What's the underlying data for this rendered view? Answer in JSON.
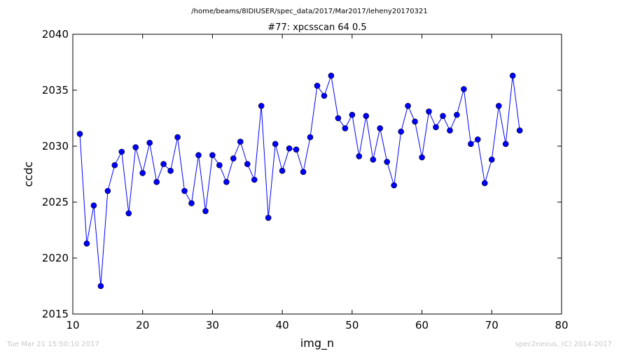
{
  "suptitle": "/home/beams/8IDIUSER/spec_data/2017/Mar2017/leheny20170321",
  "footer": {
    "timestamp": "Tue Mar 21 15:50:10 2017",
    "credit": "spec2nexus, (C) 2014-2017"
  },
  "chart_data": {
    "type": "line",
    "title": "#77: xpcsscan 64 0.5",
    "xlabel": "img_n",
    "ylabel": "ccdc",
    "xlim": [
      10,
      80
    ],
    "ylim": [
      2015,
      2040
    ],
    "xticks": [
      10,
      20,
      30,
      40,
      50,
      60,
      70,
      80
    ],
    "yticks": [
      2015,
      2020,
      2025,
      2030,
      2035,
      2040
    ],
    "grid": false,
    "line_color": "#0000ff",
    "marker": "circle",
    "x": [
      11,
      12,
      13,
      14,
      15,
      16,
      17,
      18,
      19,
      20,
      21,
      22,
      23,
      24,
      25,
      26,
      27,
      28,
      29,
      30,
      31,
      32,
      33,
      34,
      35,
      36,
      37,
      38,
      39,
      40,
      41,
      42,
      43,
      44,
      45,
      46,
      47,
      48,
      49,
      50,
      51,
      52,
      53,
      54,
      55,
      56,
      57,
      58,
      59,
      60,
      61,
      62,
      63,
      64,
      65,
      66,
      67,
      68,
      69,
      70,
      71,
      72,
      73,
      74
    ],
    "y": [
      2031.1,
      2021.3,
      2024.7,
      2017.5,
      2026.0,
      2028.3,
      2029.5,
      2024.0,
      2029.9,
      2027.6,
      2030.3,
      2026.8,
      2028.4,
      2027.8,
      2030.8,
      2026.0,
      2024.9,
      2029.2,
      2024.2,
      2029.2,
      2028.3,
      2026.8,
      2028.9,
      2030.4,
      2028.4,
      2027.0,
      2033.6,
      2023.6,
      2030.2,
      2027.8,
      2029.8,
      2029.7,
      2027.7,
      2030.8,
      2035.4,
      2034.5,
      2036.3,
      2032.5,
      2031.6,
      2032.8,
      2029.1,
      2032.7,
      2028.8,
      2031.6,
      2028.6,
      2026.5,
      2031.3,
      2033.6,
      2032.2,
      2029.0,
      2033.1,
      2031.7,
      2032.7,
      2031.4,
      2032.8,
      2035.1,
      2030.2,
      2030.6,
      2026.7,
      2028.8,
      2033.6,
      2030.2,
      2036.3,
      2031.4
    ]
  }
}
